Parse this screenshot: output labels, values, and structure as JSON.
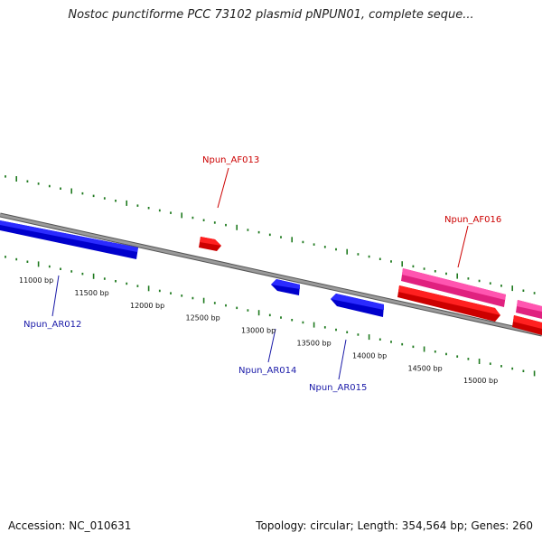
{
  "title": "Nostoc punctiforme PCC 73102 plasmid pNPUN01, complete seque...",
  "footer": {
    "accession": "Accession: NC_010631",
    "summary": "Topology: circular; Length: 354,564 bp; Genes: 260"
  },
  "colors": {
    "backbone": "#808080",
    "tick": "#1f7a1f",
    "reverse_gene": "#1010e0",
    "forward_gene": "#ff0000",
    "pseudo_gene": "#ff2a99",
    "reverse_label": "#1a1aa8",
    "forward_label": "#cc0000"
  },
  "scale_labels": [
    "11000 bp",
    "11500 bp",
    "12000 bp",
    "12500 bp",
    "13000 bp",
    "13500 bp",
    "14000 bp",
    "14500 bp",
    "15000 bp"
  ],
  "gene_labels": {
    "af013": "Npun_AF013",
    "af016": "Npun_AF016",
    "ar012": "Npun_AR012",
    "ar014": "Npun_AR014",
    "ar015": "Npun_AR015"
  }
}
